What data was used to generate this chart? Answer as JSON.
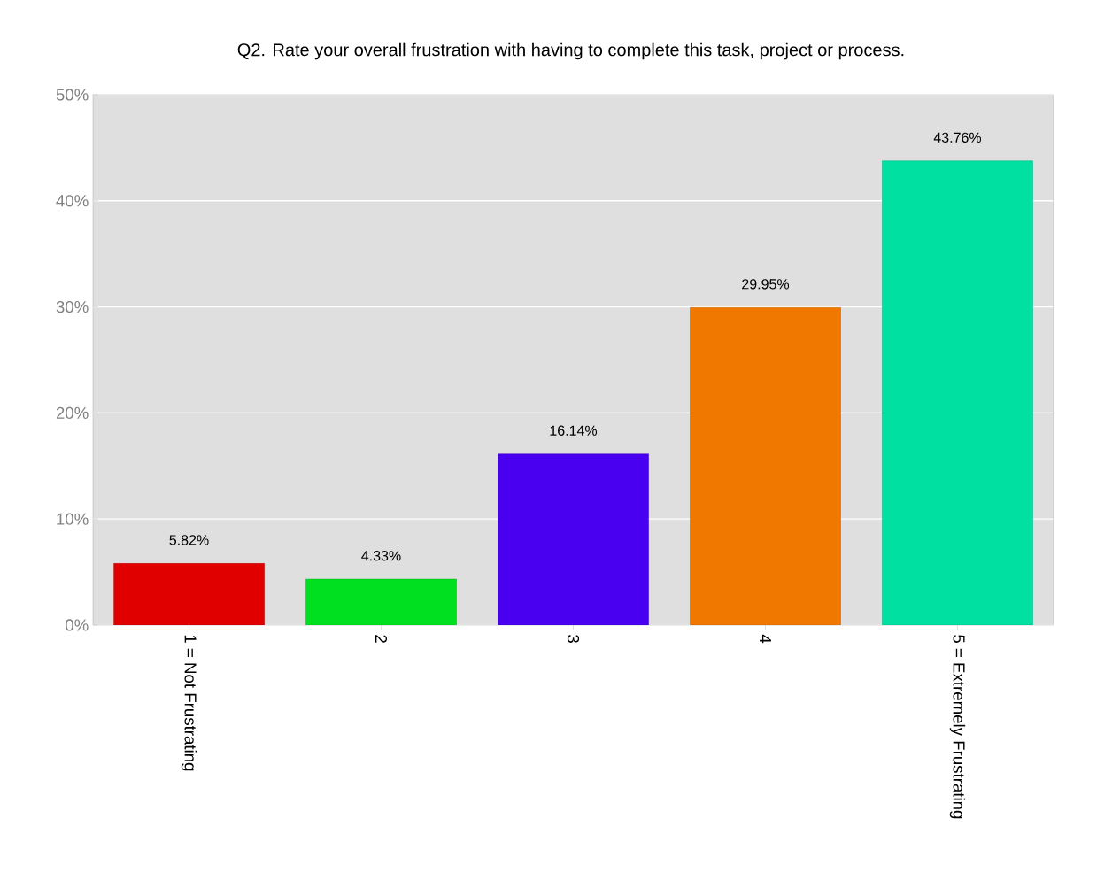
{
  "chart_data": {
    "type": "bar",
    "title": "Q2. Rate your overall frustration with having to complete this task, project or process.",
    "categories": [
      "1 = Not Frustrating",
      "2",
      "3",
      "4",
      "5 = Extremely Frustrating"
    ],
    "values": [
      5.82,
      4.33,
      16.14,
      29.95,
      43.76
    ],
    "colors": [
      "#e00000",
      "#00e020",
      "#4a00f0",
      "#f07800",
      "#00e0a0"
    ],
    "value_labels": [
      "5.82%",
      "4.33%",
      "16.14%",
      "29.95%",
      "43.76%"
    ],
    "ylim": [
      0,
      50
    ],
    "yticks": [
      {
        "value": 0,
        "label": "0%"
      },
      {
        "value": 10,
        "label": "10%"
      },
      {
        "value": 20,
        "label": "20%"
      },
      {
        "value": 30,
        "label": "30%"
      },
      {
        "value": 40,
        "label": "40%"
      },
      {
        "value": 50,
        "label": "50%"
      }
    ],
    "grid": "y"
  }
}
